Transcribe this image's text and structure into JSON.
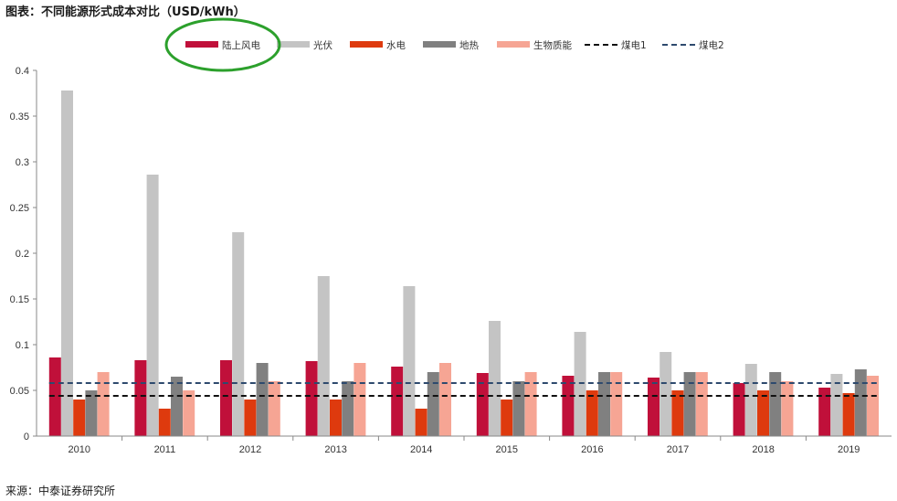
{
  "title": "图表：不同能源形式成本对比（USD/kWh）",
  "source": "来源：中泰证券研究所",
  "colors": {
    "onshore_wind": "#c0103a",
    "solar": "#c4c4c4",
    "hydro": "#de3a0e",
    "geothermal": "#808080",
    "biomass": "#f6a594",
    "coal1": "#111111",
    "coal2": "#2e4a6e",
    "highlight": "#2ca02c"
  },
  "chart_data": {
    "type": "bar",
    "categories": [
      "2010",
      "2011",
      "2012",
      "2013",
      "2014",
      "2015",
      "2016",
      "2017",
      "2018",
      "2019"
    ],
    "ylim": [
      0,
      0.4
    ],
    "yticks": [
      0,
      0.05,
      0.1,
      0.15,
      0.2,
      0.25,
      0.3,
      0.35,
      0.4
    ],
    "ytick_labels": [
      "0",
      "0.05",
      "0.1",
      "0.15",
      "0.2",
      "0.25",
      "0.3",
      "0.35",
      "0.4"
    ],
    "legend_position": "top",
    "highlighted_legend_item": "陆上风电",
    "series": [
      {
        "name": "陆上风电",
        "color_key": "onshore_wind",
        "values": [
          0.086,
          0.083,
          0.083,
          0.082,
          0.076,
          0.069,
          0.066,
          0.064,
          0.058,
          0.053
        ]
      },
      {
        "name": "光伏",
        "color_key": "solar",
        "values": [
          0.378,
          0.286,
          0.223,
          0.175,
          0.164,
          0.126,
          0.114,
          0.092,
          0.079,
          0.068
        ]
      },
      {
        "name": "水电",
        "color_key": "hydro",
        "values": [
          0.04,
          0.03,
          0.04,
          0.04,
          0.03,
          0.04,
          0.05,
          0.05,
          0.05,
          0.047
        ]
      },
      {
        "name": "地热",
        "color_key": "geothermal",
        "values": [
          0.05,
          0.065,
          0.08,
          0.06,
          0.07,
          0.06,
          0.07,
          0.07,
          0.07,
          0.073
        ]
      },
      {
        "name": "生物质能",
        "color_key": "biomass",
        "values": [
          0.07,
          0.05,
          0.06,
          0.08,
          0.08,
          0.07,
          0.07,
          0.07,
          0.06,
          0.066
        ]
      }
    ],
    "reference_lines": [
      {
        "name": "煤电1",
        "color_key": "coal1",
        "value": 0.044
      },
      {
        "name": "煤电2",
        "color_key": "coal2",
        "value": 0.058
      }
    ]
  }
}
